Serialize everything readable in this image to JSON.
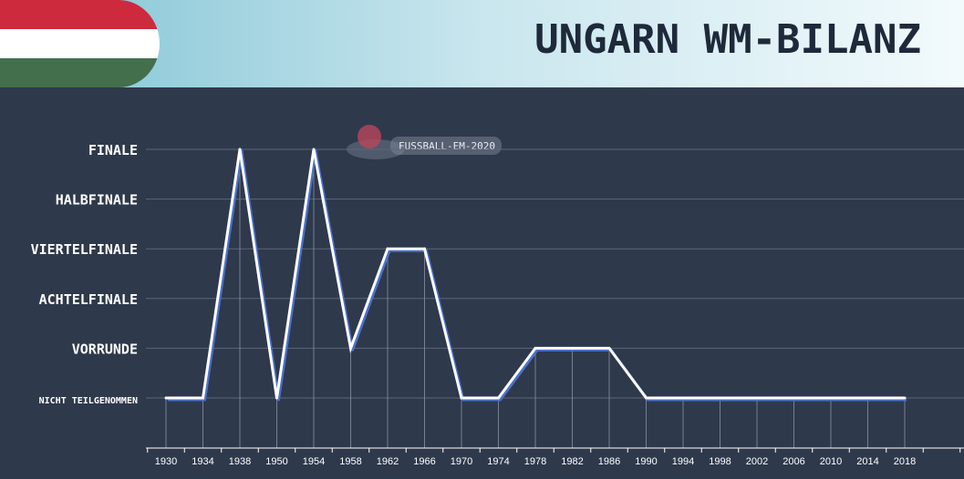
{
  "banner": {
    "title": "UNGARN WM-BILANZ",
    "watermark": "FUSSBALL-EM-2020",
    "flag_colors": [
      "#cd2a3e",
      "#ffffff",
      "#436f4d"
    ]
  },
  "colors": {
    "background": "#2f394c",
    "line": "#ffffff",
    "line_shadow": "#4a72c9",
    "grid": "#5d6677"
  },
  "chart_data": {
    "type": "line",
    "title": "UNGARN WM-BILANZ",
    "categories": [
      "1930",
      "1934",
      "1938",
      "1950",
      "1954",
      "1958",
      "1962",
      "1966",
      "1970",
      "1974",
      "1978",
      "1982",
      "1986",
      "1990",
      "1994",
      "1998",
      "2002",
      "2006",
      "2010",
      "2014",
      "2018"
    ],
    "y_levels": [
      "NICHT TEILGENOMMEN",
      "VORRUNDE",
      "ACHTELFINALE",
      "VIERTELFINALE",
      "HALBFINALE",
      "FINALE"
    ],
    "values": [
      0,
      0,
      5,
      0,
      5,
      1,
      3,
      3,
      0,
      0,
      1,
      1,
      1,
      0,
      0,
      0,
      0,
      0,
      0,
      0,
      0
    ],
    "ylim": [
      0,
      5
    ],
    "grid": true,
    "legend": "none"
  }
}
